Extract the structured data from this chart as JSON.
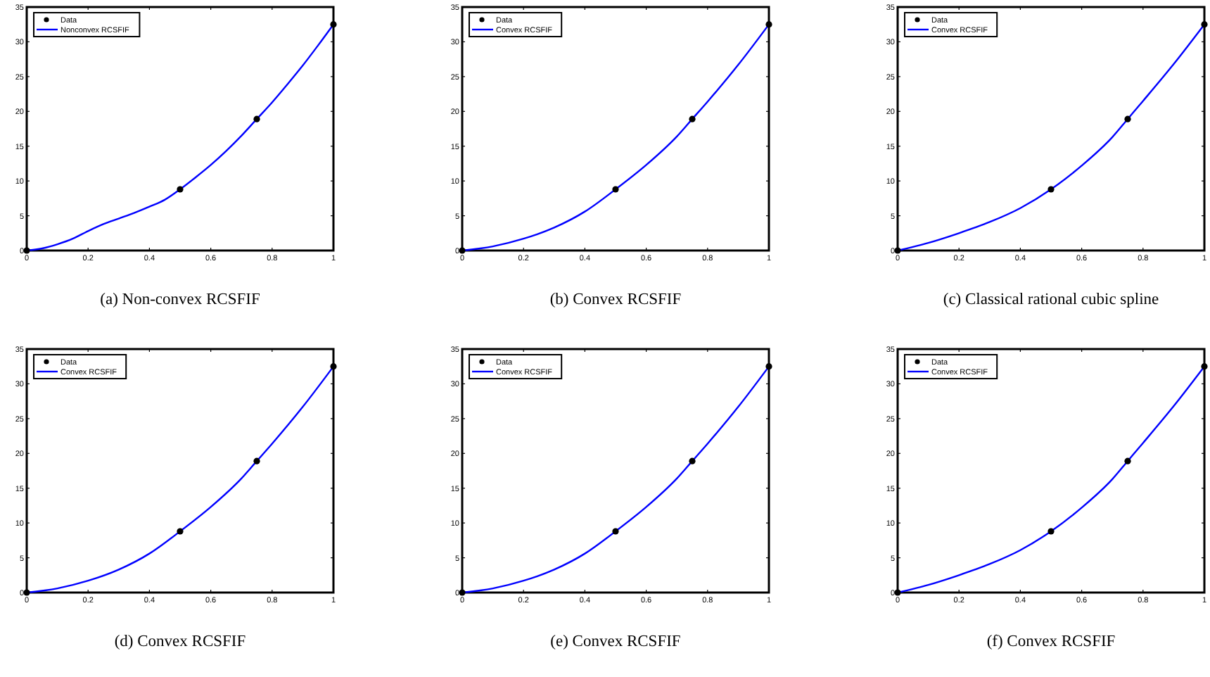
{
  "chart_data": [
    {
      "type": "line",
      "title": "(a) Non-convex RCSFIF",
      "xlim": [
        0,
        1
      ],
      "ylim": [
        0,
        35
      ],
      "xticks": [
        0,
        0.2,
        0.4,
        0.6,
        0.8,
        1
      ],
      "yticks": [
        0,
        5,
        10,
        15,
        20,
        25,
        30,
        35
      ],
      "legend": "top left",
      "grid": false,
      "series": [
        {
          "name": "Data",
          "type": "scatter",
          "marker": "circle",
          "color": "#000000",
          "x": [
            0,
            0.5,
            0.75,
            1
          ],
          "values": [
            0,
            8.8,
            18.9,
            32.5
          ]
        },
        {
          "name": "Nonconvex RCSFIF",
          "type": "line",
          "color": "#0000ff",
          "x": [
            0,
            0.05,
            0.1,
            0.15,
            0.2,
            0.25,
            0.3,
            0.35,
            0.4,
            0.45,
            0.5,
            0.55,
            0.6,
            0.65,
            0.7,
            0.75,
            0.8,
            0.85,
            0.9,
            0.95,
            1
          ],
          "values": [
            0,
            0.3,
            0.9,
            1.7,
            2.8,
            3.8,
            4.6,
            5.4,
            6.3,
            7.3,
            8.8,
            10.5,
            12.3,
            14.3,
            16.5,
            18.9,
            21.3,
            23.9,
            26.6,
            29.5,
            32.5
          ]
        }
      ]
    },
    {
      "type": "line",
      "title": "(b) Convex RCSFIF",
      "xlim": [
        0,
        1
      ],
      "ylim": [
        0,
        35
      ],
      "xticks": [
        0,
        0.2,
        0.4,
        0.6,
        0.8,
        1
      ],
      "yticks": [
        0,
        5,
        10,
        15,
        20,
        25,
        30,
        35
      ],
      "legend": "top left",
      "grid": false,
      "series": [
        {
          "name": "Data",
          "type": "scatter",
          "marker": "circle",
          "color": "#000000",
          "x": [
            0,
            0.5,
            0.75,
            1
          ],
          "values": [
            0,
            8.8,
            18.9,
            32.5
          ]
        },
        {
          "name": "Convex RCSFIF",
          "type": "line",
          "color": "#0000ff",
          "x": [
            0,
            0.1,
            0.2,
            0.3,
            0.4,
            0.5,
            0.6,
            0.7,
            0.75,
            0.8,
            0.9,
            1
          ],
          "values": [
            0,
            0.6,
            1.7,
            3.3,
            5.6,
            8.8,
            12.3,
            16.4,
            18.9,
            21.4,
            26.7,
            32.5
          ]
        }
      ]
    },
    {
      "type": "line",
      "title": "(c) Classical rational cubic spline",
      "xlim": [
        0,
        1
      ],
      "ylim": [
        0,
        35
      ],
      "xticks": [
        0,
        0.2,
        0.4,
        0.6,
        0.8,
        1
      ],
      "yticks": [
        0,
        5,
        10,
        15,
        20,
        25,
        30,
        35
      ],
      "legend": "top left",
      "grid": false,
      "series": [
        {
          "name": "Data",
          "type": "scatter",
          "marker": "circle",
          "color": "#000000",
          "x": [
            0,
            0.5,
            0.75,
            1
          ],
          "values": [
            0,
            8.8,
            18.9,
            32.5
          ]
        },
        {
          "name": "Convex RCSFIF",
          "type": "line",
          "color": "#0000ff",
          "x": [
            0,
            0.1,
            0.2,
            0.3,
            0.4,
            0.5,
            0.6,
            0.7,
            0.75,
            0.8,
            0.9,
            1
          ],
          "values": [
            0,
            1.1,
            2.5,
            4.1,
            6.1,
            8.8,
            12.2,
            16.3,
            18.9,
            21.5,
            26.8,
            32.5
          ]
        }
      ]
    },
    {
      "type": "line",
      "title": "(d) Convex RCSFIF",
      "xlim": [
        0,
        1
      ],
      "ylim": [
        0,
        35
      ],
      "xticks": [
        0,
        0.2,
        0.4,
        0.6,
        0.8,
        1
      ],
      "yticks": [
        0,
        5,
        10,
        15,
        20,
        25,
        30,
        35
      ],
      "legend": "top left",
      "grid": false,
      "series": [
        {
          "name": "Data",
          "type": "scatter",
          "marker": "circle",
          "color": "#000000",
          "x": [
            0,
            0.5,
            0.75,
            1
          ],
          "values": [
            0,
            8.8,
            18.9,
            32.5
          ]
        },
        {
          "name": "Convex RCSFIF",
          "type": "line",
          "color": "#0000ff",
          "x": [
            0,
            0.1,
            0.2,
            0.3,
            0.4,
            0.5,
            0.6,
            0.7,
            0.75,
            0.8,
            0.9,
            1
          ],
          "values": [
            0,
            0.6,
            1.7,
            3.3,
            5.6,
            8.8,
            12.3,
            16.4,
            18.9,
            21.4,
            26.7,
            32.5
          ]
        }
      ]
    },
    {
      "type": "line",
      "title": "(e) Convex RCSFIF",
      "xlim": [
        0,
        1
      ],
      "ylim": [
        0,
        35
      ],
      "xticks": [
        0,
        0.2,
        0.4,
        0.6,
        0.8,
        1
      ],
      "yticks": [
        0,
        5,
        10,
        15,
        20,
        25,
        30,
        35
      ],
      "legend": "top left",
      "grid": false,
      "series": [
        {
          "name": "Data",
          "type": "scatter",
          "marker": "circle",
          "color": "#000000",
          "x": [
            0,
            0.5,
            0.75,
            1
          ],
          "values": [
            0,
            8.8,
            18.9,
            32.5
          ]
        },
        {
          "name": "Convex RCSFIF",
          "type": "line",
          "color": "#0000ff",
          "x": [
            0,
            0.1,
            0.2,
            0.3,
            0.4,
            0.5,
            0.6,
            0.7,
            0.75,
            0.8,
            0.9,
            1
          ],
          "values": [
            0,
            0.6,
            1.7,
            3.3,
            5.6,
            8.8,
            12.3,
            16.4,
            18.9,
            21.4,
            26.7,
            32.5
          ]
        }
      ]
    },
    {
      "type": "line",
      "title": "(f) Convex RCSFIF",
      "xlim": [
        0,
        1
      ],
      "ylim": [
        0,
        35
      ],
      "xticks": [
        0,
        0.2,
        0.4,
        0.6,
        0.8,
        1
      ],
      "yticks": [
        0,
        5,
        10,
        15,
        20,
        25,
        30,
        35
      ],
      "legend": "top left",
      "grid": false,
      "series": [
        {
          "name": "Data",
          "type": "scatter",
          "marker": "circle",
          "color": "#000000",
          "x": [
            0,
            0.5,
            0.75,
            1
          ],
          "values": [
            0,
            8.8,
            18.9,
            32.5
          ]
        },
        {
          "name": "Convex RCSFIF",
          "type": "line",
          "color": "#0000ff",
          "x": [
            0,
            0.1,
            0.2,
            0.3,
            0.4,
            0.5,
            0.6,
            0.7,
            0.75,
            0.8,
            0.9,
            1
          ],
          "values": [
            0,
            1.1,
            2.5,
            4.1,
            6.1,
            8.8,
            12.2,
            16.3,
            18.9,
            21.5,
            26.8,
            32.5
          ]
        }
      ]
    }
  ]
}
